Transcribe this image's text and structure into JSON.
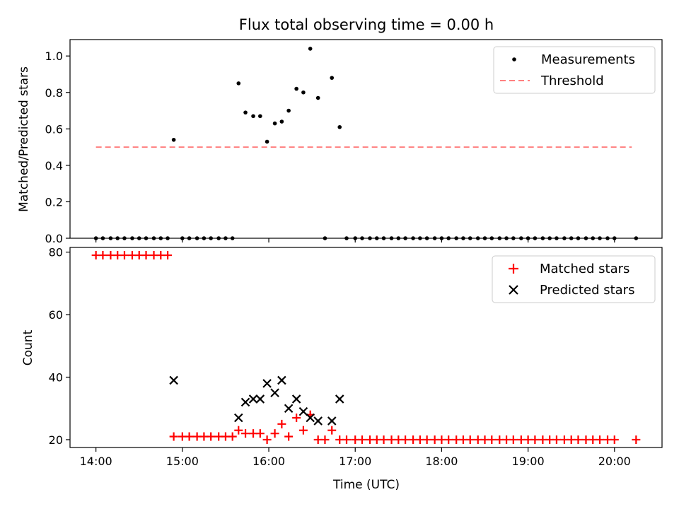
{
  "chart_data": {
    "type": "scatter",
    "title": "Flux total observing time = 0.00 h",
    "xlabel": "Time (UTC)",
    "xlim": [
      13.7,
      20.55
    ],
    "x_ticks": [
      14,
      15,
      16,
      17,
      18,
      19,
      20
    ],
    "x_tick_labels": [
      "14:00",
      "15:00",
      "16:00",
      "17:00",
      "18:00",
      "19:00",
      "20:00"
    ],
    "top": {
      "ylabel": "Matched/Predicted stars",
      "ylim": [
        0.0,
        1.09
      ],
      "y_ticks": [
        0.0,
        0.2,
        0.4,
        0.6,
        0.8,
        1.0
      ],
      "y_tick_labels": [
        "0.0",
        "0.2",
        "0.4",
        "0.6",
        "0.8",
        "1.0"
      ],
      "legend": [
        "Measurements",
        "Threshold"
      ],
      "legend_loc": "top-right",
      "threshold": {
        "value": 0.5,
        "x_start": 14.0,
        "x_end": 20.2,
        "color": "#ff8080"
      },
      "measurements": {
        "x": [
          14.0,
          14.08,
          14.17,
          14.25,
          14.33,
          14.42,
          14.5,
          14.58,
          14.67,
          14.75,
          14.83,
          14.9,
          15.0,
          15.08,
          15.17,
          15.25,
          15.33,
          15.42,
          15.5,
          15.58,
          15.65,
          15.73,
          15.82,
          15.9,
          15.98,
          16.07,
          16.15,
          16.23,
          16.32,
          16.4,
          16.48,
          16.57,
          16.65,
          16.73,
          16.82,
          16.9,
          17.0,
          17.08,
          17.17,
          17.25,
          17.33,
          17.42,
          17.5,
          17.58,
          17.67,
          17.75,
          17.83,
          17.92,
          18.0,
          18.08,
          18.17,
          18.25,
          18.33,
          18.42,
          18.5,
          18.58,
          18.67,
          18.75,
          18.83,
          18.92,
          19.0,
          19.08,
          19.17,
          19.25,
          19.33,
          19.42,
          19.5,
          19.58,
          19.67,
          19.75,
          19.83,
          19.92,
          20.0,
          20.25
        ],
        "y": [
          0,
          0,
          0,
          0,
          0,
          0,
          0,
          0,
          0,
          0,
          0,
          0.54,
          0,
          0,
          0,
          0,
          0,
          0,
          0,
          0,
          0.85,
          0.69,
          0.67,
          0.67,
          0.53,
          0.63,
          0.64,
          0.7,
          0.82,
          0.8,
          1.04,
          0.77,
          0,
          0.88,
          0.61,
          0,
          0,
          0,
          0,
          0,
          0,
          0,
          0,
          0,
          0,
          0,
          0,
          0,
          0,
          0,
          0,
          0,
          0,
          0,
          0,
          0,
          0,
          0,
          0,
          0,
          0,
          0,
          0,
          0,
          0,
          0,
          0,
          0,
          0,
          0,
          0,
          0,
          0,
          0
        ]
      }
    },
    "bottom": {
      "ylabel": "Count",
      "ylim": [
        17.5,
        81.5
      ],
      "y_ticks": [
        20,
        40,
        60,
        80
      ],
      "y_tick_labels": [
        "20",
        "40",
        "60",
        "80"
      ],
      "legend": [
        "Matched stars",
        "Predicted stars"
      ],
      "legend_loc": "top-right",
      "matched": {
        "color": "#ff0000",
        "x": [
          14.0,
          14.08,
          14.17,
          14.25,
          14.33,
          14.42,
          14.5,
          14.58,
          14.67,
          14.75,
          14.83,
          14.9,
          15.0,
          15.08,
          15.17,
          15.25,
          15.33,
          15.42,
          15.5,
          15.58,
          15.65,
          15.73,
          15.82,
          15.9,
          15.98,
          16.07,
          16.15,
          16.23,
          16.32,
          16.4,
          16.48,
          16.57,
          16.65,
          16.73,
          16.82,
          16.9,
          17.0,
          17.08,
          17.17,
          17.25,
          17.33,
          17.42,
          17.5,
          17.58,
          17.67,
          17.75,
          17.83,
          17.92,
          18.0,
          18.08,
          18.17,
          18.25,
          18.33,
          18.42,
          18.5,
          18.58,
          18.67,
          18.75,
          18.83,
          18.92,
          19.0,
          19.08,
          19.17,
          19.25,
          19.33,
          19.42,
          19.5,
          19.58,
          19.67,
          19.75,
          19.83,
          19.92,
          20.0,
          20.25
        ],
        "y": [
          79,
          79,
          79,
          79,
          79,
          79,
          79,
          79,
          79,
          79,
          79,
          21,
          21,
          21,
          21,
          21,
          21,
          21,
          21,
          21,
          23,
          22,
          22,
          22,
          20,
          22,
          25,
          21,
          27,
          23,
          28,
          20,
          20,
          23,
          20,
          20,
          20,
          20,
          20,
          20,
          20,
          20,
          20,
          20,
          20,
          20,
          20,
          20,
          20,
          20,
          20,
          20,
          20,
          20,
          20,
          20,
          20,
          20,
          20,
          20,
          20,
          20,
          20,
          20,
          20,
          20,
          20,
          20,
          20,
          20,
          20,
          20,
          20,
          20
        ]
      },
      "predicted": {
        "color": "#000000",
        "x": [
          14.9,
          15.65,
          15.73,
          15.82,
          15.9,
          15.98,
          16.07,
          16.15,
          16.23,
          16.32,
          16.4,
          16.48,
          16.57,
          16.73,
          16.82
        ],
        "y": [
          39,
          27,
          32,
          33,
          33,
          38,
          35,
          39,
          30,
          33,
          29,
          27,
          26,
          26,
          33
        ]
      }
    }
  }
}
